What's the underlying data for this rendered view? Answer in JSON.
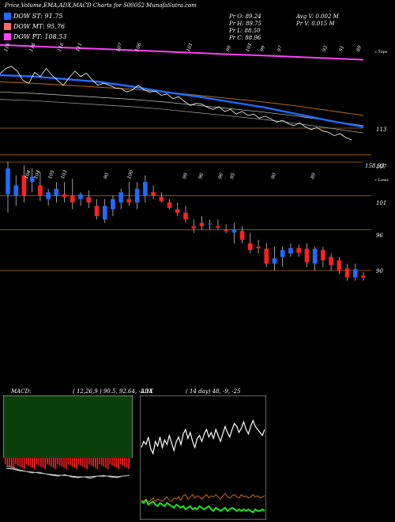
{
  "header": {
    "title": "Price,Volume,EMA,ADX,MACD Charts for 500052  MunafaSutra.com"
  },
  "legend": [
    {
      "label": "DOW ST: 91.75",
      "color": "#1e6cff"
    },
    {
      "label": "DOW MT: 95.76",
      "color": "#ff6a6a"
    },
    {
      "label": "DOW PT: 108.53",
      "color": "#ff40ff"
    }
  ],
  "stats": {
    "pr_o": "Pr   O: 89.24",
    "pr_h": "Pr   H: 89.75",
    "pr_l": "Pr   L: 88.50",
    "pr_c": "Pr   C: 88.96",
    "avg_v": "Avg V: 0.002  M",
    "pr_v": "Pr   V: 0.015  M"
  },
  "top_panel": {
    "side_label": "« Tops",
    "price_labels": [
      "113",
      "158.93"
    ],
    "peak_labels": [
      "116",
      "116",
      "116",
      "111",
      "107",
      "106",
      "101",
      "99",
      "101",
      "99",
      "97",
      "93",
      "91",
      "89"
    ]
  },
  "mid_panel": {
    "side_label": "« Lows",
    "price_labels": [
      "107",
      "101",
      "96",
      "90"
    ],
    "low_labels": [
      "104",
      "104",
      "105",
      "103",
      "90",
      "100",
      "99",
      "96",
      "96",
      "95",
      "90",
      "89"
    ]
  },
  "macd": {
    "title": "MACD:",
    "params": "( 12,26,9 )  90.5,  92.64,  -2.14"
  },
  "adx": {
    "title": "ADX",
    "params": "( 14  day)  48,  -9,  -25"
  },
  "chart_data": {
    "type": "candlestick",
    "title": "Price,Volume,EMA,ADX,MACD Charts for 500052  MunafaSutra.com",
    "ylim": [
      87,
      108
    ],
    "horizontal_levels": [
      107,
      101,
      96,
      90
    ],
    "candles": [
      {
        "o": 101.2,
        "h": 106.0,
        "l": 98.5,
        "c": 105.0
      },
      {
        "o": 101.0,
        "h": 104.0,
        "l": 99.5,
        "c": 102.5
      },
      {
        "o": 104.0,
        "h": 105.5,
        "l": 100.0,
        "c": 101.0
      },
      {
        "o": 103.0,
        "h": 105.0,
        "l": 101.5,
        "c": 103.8
      },
      {
        "o": 102.5,
        "h": 104.5,
        "l": 100.2,
        "c": 101.0
      },
      {
        "o": 100.5,
        "h": 102.0,
        "l": 99.5,
        "c": 101.5
      },
      {
        "o": 101.0,
        "h": 103.0,
        "l": 100.0,
        "c": 102.0
      },
      {
        "o": 101.2,
        "h": 103.0,
        "l": 100.0,
        "c": 100.8
      },
      {
        "o": 101.0,
        "h": 103.5,
        "l": 99.0,
        "c": 100.0
      },
      {
        "o": 100.5,
        "h": 101.5,
        "l": 99.5,
        "c": 101.2
      },
      {
        "o": 100.8,
        "h": 101.8,
        "l": 99.2,
        "c": 100.0
      },
      {
        "o": 99.5,
        "h": 100.5,
        "l": 97.5,
        "c": 98.0
      },
      {
        "o": 97.5,
        "h": 100.5,
        "l": 97.0,
        "c": 99.5
      },
      {
        "o": 99.0,
        "h": 101.0,
        "l": 98.0,
        "c": 100.5
      },
      {
        "o": 100.0,
        "h": 102.0,
        "l": 99.0,
        "c": 101.5
      },
      {
        "o": 100.5,
        "h": 103.0,
        "l": 99.5,
        "c": 100.0
      },
      {
        "o": 100.0,
        "h": 103.0,
        "l": 99.0,
        "c": 102.0
      },
      {
        "o": 101.0,
        "h": 104.0,
        "l": 100.0,
        "c": 103.0
      },
      {
        "o": 101.5,
        "h": 102.5,
        "l": 100.5,
        "c": 101.0
      },
      {
        "o": 100.8,
        "h": 101.5,
        "l": 100.0,
        "c": 100.2
      },
      {
        "o": 100.0,
        "h": 100.5,
        "l": 99.0,
        "c": 99.2
      },
      {
        "o": 99.0,
        "h": 100.0,
        "l": 98.0,
        "c": 98.5
      },
      {
        "o": 98.5,
        "h": 99.5,
        "l": 97.0,
        "c": 97.5
      },
      {
        "o": 96.5,
        "h": 97.5,
        "l": 95.5,
        "c": 96.2
      },
      {
        "o": 97.0,
        "h": 98.0,
        "l": 96.0,
        "c": 96.5
      },
      {
        "o": 96.8,
        "h": 97.5,
        "l": 96.0,
        "c": 96.9
      },
      {
        "o": 96.5,
        "h": 97.5,
        "l": 96.0,
        "c": 96.3
      },
      {
        "o": 96.0,
        "h": 96.8,
        "l": 95.5,
        "c": 95.8
      },
      {
        "o": 95.6,
        "h": 97.0,
        "l": 94.0,
        "c": 96.0
      },
      {
        "o": 95.8,
        "h": 96.5,
        "l": 94.0,
        "c": 94.5
      },
      {
        "o": 94.0,
        "h": 95.5,
        "l": 92.5,
        "c": 93.0
      },
      {
        "o": 93.5,
        "h": 94.5,
        "l": 92.5,
        "c": 93.3
      },
      {
        "o": 93.2,
        "h": 94.0,
        "l": 90.5,
        "c": 91.0
      },
      {
        "o": 91.0,
        "h": 93.5,
        "l": 90.0,
        "c": 91.8
      },
      {
        "o": 92.0,
        "h": 93.5,
        "l": 90.5,
        "c": 93.0
      },
      {
        "o": 92.5,
        "h": 94.0,
        "l": 92.0,
        "c": 93.3
      },
      {
        "o": 93.3,
        "h": 93.8,
        "l": 92.0,
        "c": 92.6
      },
      {
        "o": 93.2,
        "h": 94.0,
        "l": 90.5,
        "c": 91.2
      },
      {
        "o": 91.0,
        "h": 93.5,
        "l": 90.0,
        "c": 93.2
      },
      {
        "o": 93.0,
        "h": 93.5,
        "l": 90.5,
        "c": 91.5
      },
      {
        "o": 92.0,
        "h": 92.5,
        "l": 90.0,
        "c": 90.8
      },
      {
        "o": 91.5,
        "h": 92.0,
        "l": 89.5,
        "c": 90.0
      },
      {
        "o": 90.3,
        "h": 91.0,
        "l": 88.5,
        "c": 89.0
      },
      {
        "o": 89.0,
        "h": 91.0,
        "l": 88.5,
        "c": 90.2
      },
      {
        "o": 89.24,
        "h": 89.75,
        "l": 88.5,
        "c": 88.96
      }
    ],
    "top_close": [
      114.2,
      115.0,
      115.3,
      114.6,
      113.2,
      112.8,
      114.4,
      113.8,
      115.0,
      114.0,
      113.2,
      112.5,
      113.6,
      114.6,
      113.8,
      114.3,
      113.3,
      112.5,
      112.8,
      112.5,
      112.1,
      112.0,
      111.5,
      111.8,
      112.5,
      111.8,
      111.5,
      111.6,
      111.0,
      111.2,
      110.5,
      110.8,
      110.1,
      109.5,
      109.8,
      109.7,
      109.2,
      108.9,
      109.3,
      108.6,
      108.9,
      108.2,
      108.6,
      108.0,
      108.2,
      107.6,
      107.9,
      107.5,
      107.0,
      107.3,
      106.8,
      106.5,
      106.9,
      106.3,
      105.9,
      106.2,
      105.7,
      105.5,
      105.0,
      105.3,
      104.7,
      104.4
    ],
    "top_ema_pt": [
      118.5,
      118.3,
      118.1,
      117.9,
      117.7,
      117.5,
      117.3,
      117.1,
      116.9,
      116.7,
      116.5,
      116.3
    ],
    "top_ema_mt": [
      113.0,
      112.8,
      112.5,
      112.2,
      111.9,
      111.5,
      111.0,
      110.5,
      110.0,
      109.4,
      108.7,
      108.0
    ],
    "top_ema_st": [
      114.0,
      113.8,
      113.4,
      113.0,
      112.3,
      111.5,
      110.8,
      110.0,
      109.2,
      108.2,
      107.2,
      106.3
    ],
    "macd_line": [
      -1.0,
      -1.2,
      -1.5,
      -1.7,
      -1.9,
      -1.8,
      -2.0,
      -2.2,
      -2.3,
      -2.1,
      -2.4,
      -2.5,
      -2.4,
      -2.6,
      -2.3,
      -2.2,
      -2.4,
      -2.5,
      -2.3,
      -2.2
    ],
    "macd_signal": [
      -1.3,
      -1.4,
      -1.6,
      -1.7,
      -1.8,
      -1.9,
      -2.0,
      -2.1,
      -2.2,
      -2.2,
      -2.3,
      -2.4,
      -2.4,
      -2.4,
      -2.3,
      -2.3,
      -2.3,
      -2.4,
      -2.3,
      -2.2
    ],
    "adx_di_plus": [
      48,
      52,
      50,
      55,
      47,
      44,
      52,
      49,
      55,
      48,
      53,
      50,
      56,
      51,
      46,
      52,
      55,
      50,
      57,
      60,
      54,
      58,
      52,
      48,
      54,
      56,
      52,
      57,
      60,
      55,
      58,
      54,
      60,
      56,
      52,
      57,
      62,
      58,
      55,
      60,
      64,
      62,
      58,
      61,
      65,
      60,
      57,
      62,
      66,
      62,
      60,
      58,
      56,
      60
    ],
    "adx_di_minus": [
      9,
      8,
      10,
      7,
      9,
      11,
      8,
      10,
      9,
      8,
      10,
      12,
      9,
      8,
      11,
      10,
      12,
      9,
      13,
      14,
      10,
      12,
      14,
      11,
      13,
      12,
      10,
      12,
      14,
      11,
      13,
      12,
      14,
      12,
      10,
      13,
      15,
      12,
      11,
      13,
      14,
      12,
      11,
      14,
      12,
      13,
      11,
      12,
      14,
      12,
      13,
      11,
      12,
      13
    ],
    "adx_line": [
      8,
      7,
      9,
      6,
      7,
      8,
      6,
      5,
      7,
      6,
      5,
      7,
      6,
      5,
      4,
      6,
      5,
      4,
      5,
      3,
      4,
      5,
      3,
      4,
      3,
      5,
      4,
      3,
      4,
      5,
      3,
      2,
      4,
      3,
      2,
      3,
      4,
      2,
      3,
      4,
      3,
      2,
      3,
      2,
      3,
      2,
      3,
      2,
      1,
      3,
      2,
      2,
      3,
      2
    ]
  }
}
